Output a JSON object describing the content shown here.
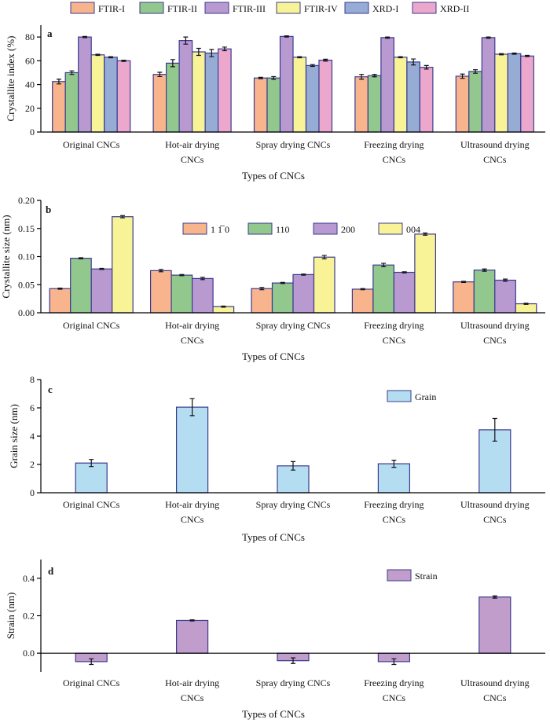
{
  "chart_data": [
    {
      "type": "bar",
      "panel": "a",
      "categories": [
        [
          "Original CNCs"
        ],
        [
          "Hot-air drying",
          "CNCs"
        ],
        [
          "Spray drying CNCs"
        ],
        [
          "Freezing drying",
          "CNCs"
        ],
        [
          "Ultrasound drying",
          "CNCs"
        ]
      ],
      "series": [
        {
          "name": "FTIR-I",
          "color": "#f8b48c",
          "values": [
            42.5,
            48.5,
            45.5,
            46.5,
            47.0
          ],
          "errors": [
            2.0,
            1.8,
            0.6,
            2.0,
            1.8
          ]
        },
        {
          "name": "FTIR-II",
          "color": "#92c88e",
          "values": [
            50.0,
            58.0,
            45.5,
            47.5,
            51.0
          ],
          "errors": [
            1.5,
            3.0,
            1.2,
            1.0,
            1.5
          ]
        },
        {
          "name": "FTIR-III",
          "color": "#b89ad0",
          "values": [
            80.0,
            77.0,
            80.5,
            79.5,
            79.5
          ],
          "errors": [
            0.5,
            3.0,
            0.5,
            0.5,
            0.5
          ]
        },
        {
          "name": "FTIR-IV",
          "color": "#f8f396",
          "values": [
            65.0,
            67.5,
            63.0,
            63.0,
            65.5
          ],
          "errors": [
            0.5,
            3.0,
            0.5,
            0.5,
            0.5
          ]
        },
        {
          "name": "XRD-I",
          "color": "#96acd4",
          "values": [
            63.0,
            66.5,
            56.0,
            59.0,
            66.0
          ],
          "errors": [
            0.5,
            3.0,
            0.8,
            2.5,
            0.5
          ]
        },
        {
          "name": "XRD-II",
          "color": "#eba8cc",
          "values": [
            60.0,
            70.0,
            60.5,
            54.5,
            64.0
          ],
          "errors": [
            0.5,
            1.5,
            0.8,
            1.5,
            0.5
          ]
        }
      ],
      "xlabel": "Types of CNCs",
      "ylabel": "Crystallite index (%)",
      "ylim": [
        0,
        90
      ],
      "yticks": [
        0,
        20,
        40,
        60,
        80
      ],
      "legend": "top, horizontal"
    },
    {
      "type": "bar",
      "panel": "b",
      "categories": [
        [
          "Original CNCs"
        ],
        [
          "Hot-air drying",
          "CNCs"
        ],
        [
          "Spray drying CNCs"
        ],
        [
          "Freezing drying",
          "CNCs"
        ],
        [
          "Ultrasound drying",
          "CNCs"
        ]
      ],
      "series": [
        {
          "name": "1 1̅ 0",
          "color": "#f8b48c",
          "values": [
            0.043,
            0.075,
            0.043,
            0.042,
            0.055
          ],
          "errors": [
            0.001,
            0.002,
            0.002,
            0.001,
            0.001
          ]
        },
        {
          "name": "110",
          "color": "#92c88e",
          "values": [
            0.097,
            0.067,
            0.053,
            0.085,
            0.076
          ],
          "errors": [
            0.001,
            0.001,
            0.001,
            0.003,
            0.002
          ]
        },
        {
          "name": "200",
          "color": "#b89ad0",
          "values": [
            0.078,
            0.061,
            0.068,
            0.072,
            0.058
          ],
          "errors": [
            0.001,
            0.002,
            0.001,
            0.001,
            0.002
          ]
        },
        {
          "name": "004",
          "color": "#f8f396",
          "values": [
            0.171,
            0.011,
            0.099,
            0.14,
            0.016
          ],
          "errors": [
            0.002,
            0.001,
            0.003,
            0.002,
            0.001
          ]
        }
      ],
      "xlabel": "Types of CNCs",
      "ylabel": "Crystallite size (nm)",
      "ylim": [
        0,
        0.2
      ],
      "yticks": [
        0.0,
        0.05,
        0.1,
        0.15,
        0.2
      ],
      "legend": "top-center"
    },
    {
      "type": "bar",
      "panel": "c",
      "categories": [
        [
          "Original CNCs"
        ],
        [
          "Hot-air drying",
          "CNCs"
        ],
        [
          "Spray drying CNCs"
        ],
        [
          "Freezing drying",
          "CNCs"
        ],
        [
          "Ultrasound drying",
          "CNCs"
        ]
      ],
      "series": [
        {
          "name": "Grain",
          "color": "#b4ddf2",
          "values": [
            2.1,
            6.05,
            1.9,
            2.05,
            4.45
          ],
          "errors": [
            0.25,
            0.6,
            0.3,
            0.25,
            0.8
          ]
        }
      ],
      "xlabel": "Types of CNCs",
      "ylabel": "Grain size (nm)",
      "ylim": [
        0,
        8
      ],
      "yticks": [
        0,
        2,
        4,
        6,
        8
      ],
      "legend": "top-right"
    },
    {
      "type": "bar",
      "panel": "d",
      "categories": [
        [
          "Original CNCs"
        ],
        [
          "Hot-air drying",
          "CNCs"
        ],
        [
          "Spray drying CNCs"
        ],
        [
          "Freezing drying",
          "CNCs"
        ],
        [
          "Ultrasound drying",
          "CNCs"
        ]
      ],
      "series": [
        {
          "name": "Strain",
          "color": "#c09dca",
          "values": [
            -0.045,
            0.175,
            -0.04,
            -0.045,
            0.3
          ],
          "errors": [
            0.015,
            0.003,
            0.015,
            0.015,
            0.006
          ]
        }
      ],
      "xlabel": "Types of CNCs",
      "ylabel": "Strain (nm)",
      "ylim": [
        -0.1,
        0.5
      ],
      "yticks": [
        0.0,
        0.2,
        0.4
      ],
      "legend": "top-right"
    }
  ]
}
